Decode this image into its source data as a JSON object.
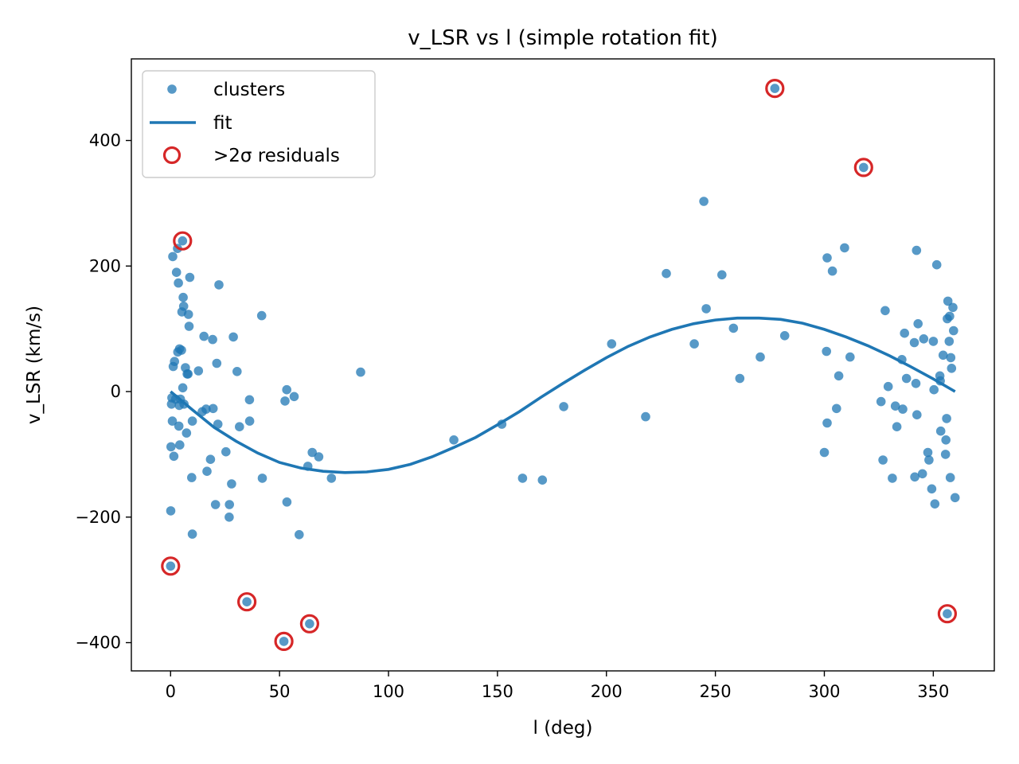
{
  "chart_data": {
    "type": "scatter",
    "title": "v_LSR vs l (simple rotation fit)",
    "xlabel": "l (deg)",
    "ylabel": "v_LSR (km/s)",
    "xlim": [
      -18,
      378
    ],
    "ylim": [
      -445,
      530
    ],
    "xticks": [
      0,
      50,
      100,
      150,
      200,
      250,
      300,
      350
    ],
    "xtick_labels": [
      "0",
      "50",
      "100",
      "150",
      "200",
      "250",
      "300",
      "350"
    ],
    "yticks": [
      -400,
      -200,
      0,
      200,
      400
    ],
    "ytick_labels": [
      "−400",
      "−200",
      "0",
      "200",
      "400"
    ],
    "grid": false,
    "legend_placement": "top-left",
    "colors": {
      "clusters": "#1f77b4",
      "fit": "#1f77b4",
      "residuals": "#d62728"
    },
    "legend": [
      {
        "label": "clusters",
        "kind": "point"
      },
      {
        "label": "fit",
        "kind": "line"
      },
      {
        "label": ">2σ residuals",
        "kind": "ring"
      }
    ],
    "series": [
      {
        "name": "clusters",
        "kind": "scatter",
        "points": [
          [
            0.0,
            -278
          ],
          [
            0.1,
            -190
          ],
          [
            0.2,
            -88
          ],
          [
            0.4,
            -20
          ],
          [
            0.6,
            -10
          ],
          [
            0.8,
            -47
          ],
          [
            1.0,
            215
          ],
          [
            1.2,
            40
          ],
          [
            1.5,
            -103
          ],
          [
            1.8,
            48
          ],
          [
            2.3,
            -12
          ],
          [
            2.7,
            190
          ],
          [
            3.2,
            228
          ],
          [
            3.3,
            63
          ],
          [
            3.6,
            173
          ],
          [
            3.8,
            -55
          ],
          [
            4.0,
            -22
          ],
          [
            4.1,
            68
          ],
          [
            4.2,
            -85
          ],
          [
            4.5,
            -12
          ],
          [
            5.0,
            66
          ],
          [
            5.2,
            127
          ],
          [
            5.5,
            240
          ],
          [
            5.6,
            6
          ],
          [
            5.8,
            150
          ],
          [
            6.0,
            136
          ],
          [
            6.2,
            -20
          ],
          [
            6.8,
            38
          ],
          [
            7.3,
            -66
          ],
          [
            7.6,
            28
          ],
          [
            8.0,
            28
          ],
          [
            8.2,
            123
          ],
          [
            8.5,
            104
          ],
          [
            8.8,
            182
          ],
          [
            9.7,
            -137
          ],
          [
            10.0,
            -227
          ],
          [
            10.0,
            -47
          ],
          [
            12.8,
            33
          ],
          [
            14.5,
            -32
          ],
          [
            15.3,
            88
          ],
          [
            16.3,
            -28
          ],
          [
            16.7,
            -127
          ],
          [
            18.3,
            -108
          ],
          [
            19.3,
            83
          ],
          [
            19.5,
            -27
          ],
          [
            20.6,
            -180
          ],
          [
            21.2,
            45
          ],
          [
            21.7,
            -52
          ],
          [
            22.2,
            170
          ],
          [
            25.4,
            -96
          ],
          [
            26.9,
            -200
          ],
          [
            27.0,
            -180
          ],
          [
            28.0,
            -147
          ],
          [
            28.8,
            87
          ],
          [
            30.5,
            32
          ],
          [
            31.6,
            -56
          ],
          [
            35.0,
            -335
          ],
          [
            36.2,
            -13
          ],
          [
            36.3,
            -47
          ],
          [
            41.8,
            121
          ],
          [
            42.1,
            -138
          ],
          [
            52.0,
            -398
          ],
          [
            52.5,
            -15
          ],
          [
            53.3,
            3
          ],
          [
            53.4,
            -176
          ],
          [
            56.7,
            -8
          ],
          [
            59.0,
            -228
          ],
          [
            63.0,
            -119
          ],
          [
            63.8,
            -370
          ],
          [
            65.0,
            -97
          ],
          [
            68.0,
            -104
          ],
          [
            73.8,
            -138
          ],
          [
            87.2,
            31
          ],
          [
            130.0,
            -77
          ],
          [
            152.0,
            -52
          ],
          [
            161.5,
            -138
          ],
          [
            170.6,
            -141
          ],
          [
            180.4,
            -24
          ],
          [
            202.4,
            76
          ],
          [
            218.0,
            -40
          ],
          [
            227.5,
            188
          ],
          [
            240.3,
            76
          ],
          [
            244.7,
            303
          ],
          [
            245.8,
            132
          ],
          [
            253.0,
            186
          ],
          [
            258.3,
            101
          ],
          [
            261.2,
            21
          ],
          [
            270.6,
            55
          ],
          [
            277.3,
            483
          ],
          [
            281.8,
            89
          ],
          [
            300.0,
            -97
          ],
          [
            301.0,
            64
          ],
          [
            301.3,
            213
          ],
          [
            301.3,
            -50
          ],
          [
            303.7,
            192
          ],
          [
            305.6,
            -27
          ],
          [
            306.6,
            25
          ],
          [
            309.3,
            229
          ],
          [
            311.8,
            55
          ],
          [
            318.0,
            357
          ],
          [
            326.0,
            -16
          ],
          [
            326.9,
            -109
          ],
          [
            327.9,
            129
          ],
          [
            329.3,
            8
          ],
          [
            331.2,
            -138
          ],
          [
            332.6,
            -23
          ],
          [
            333.3,
            -56
          ],
          [
            335.6,
            51
          ],
          [
            336.0,
            -28
          ],
          [
            336.8,
            93
          ],
          [
            337.7,
            21
          ],
          [
            341.3,
            78
          ],
          [
            341.5,
            -136
          ],
          [
            342.0,
            13
          ],
          [
            342.3,
            225
          ],
          [
            342.5,
            -37
          ],
          [
            343.0,
            108
          ],
          [
            345.0,
            -131
          ],
          [
            345.6,
            84
          ],
          [
            347.5,
            -97
          ],
          [
            348.0,
            -109
          ],
          [
            349.3,
            -155
          ],
          [
            350.0,
            80
          ],
          [
            350.3,
            3
          ],
          [
            350.7,
            -179
          ],
          [
            351.6,
            202
          ],
          [
            353.0,
            25
          ],
          [
            353.2,
            17
          ],
          [
            353.4,
            -63
          ],
          [
            354.5,
            58
          ],
          [
            355.6,
            -100
          ],
          [
            355.8,
            -77
          ],
          [
            356.1,
            -43
          ],
          [
            356.4,
            -354
          ],
          [
            356.4,
            116
          ],
          [
            356.7,
            144
          ],
          [
            357.3,
            80
          ],
          [
            357.5,
            120
          ],
          [
            357.8,
            -137
          ],
          [
            358.0,
            54
          ],
          [
            358.4,
            37
          ],
          [
            359.0,
            134
          ],
          [
            359.3,
            97
          ],
          [
            360.0,
            -169
          ]
        ]
      },
      {
        "name": "fit",
        "kind": "line",
        "points": [
          [
            0,
            0
          ],
          [
            10,
            -29
          ],
          [
            20,
            -57
          ],
          [
            30,
            -79
          ],
          [
            40,
            -98
          ],
          [
            50,
            -113
          ],
          [
            60,
            -122
          ],
          [
            70,
            -127
          ],
          [
            80,
            -129
          ],
          [
            90,
            -128
          ],
          [
            100,
            -124
          ],
          [
            110,
            -116
          ],
          [
            120,
            -104
          ],
          [
            130,
            -89
          ],
          [
            140,
            -73
          ],
          [
            150,
            -53
          ],
          [
            160,
            -32
          ],
          [
            170,
            -9
          ],
          [
            180,
            13
          ],
          [
            190,
            34
          ],
          [
            200,
            54
          ],
          [
            210,
            72
          ],
          [
            220,
            87
          ],
          [
            230,
            99
          ],
          [
            240,
            108
          ],
          [
            250,
            114
          ],
          [
            260,
            117
          ],
          [
            270,
            117
          ],
          [
            280,
            115
          ],
          [
            290,
            109
          ],
          [
            300,
            99
          ],
          [
            310,
            87
          ],
          [
            320,
            73
          ],
          [
            330,
            57
          ],
          [
            340,
            39
          ],
          [
            350,
            20
          ],
          [
            360,
            0
          ]
        ]
      },
      {
        "name": ">2σ residuals",
        "kind": "ring",
        "points": [
          [
            0.0,
            -278
          ],
          [
            5.5,
            240
          ],
          [
            35.0,
            -335
          ],
          [
            52.0,
            -398
          ],
          [
            63.8,
            -370
          ],
          [
            277.3,
            483
          ],
          [
            318.0,
            357
          ],
          [
            356.4,
            -354
          ]
        ]
      }
    ]
  }
}
